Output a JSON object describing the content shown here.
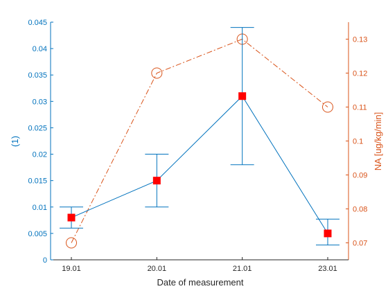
{
  "chart_data": {
    "type": "line",
    "categories": [
      "19.01",
      "20.01",
      "21.01",
      "23.01"
    ],
    "xlabel": "Date of measurement",
    "ylabel_left": "(1)",
    "ylabel_right": "NA [ug/kg/min]",
    "ylim_left": [
      0,
      0.045
    ],
    "ylim_right": [
      0.065,
      0.135
    ],
    "yticks_left": [
      "0",
      "0.005",
      "0.01",
      "0.015",
      "0.02",
      "0.025",
      "0.03",
      "0.035",
      "0.04",
      "0.045"
    ],
    "yticks_right": [
      "0.07",
      "0.08",
      "0.09",
      "0.1",
      "0.11",
      "0.12",
      "0.13"
    ],
    "grid": false,
    "series": [
      {
        "axis": "left",
        "style": "solid line, red square markers, error bars",
        "color": "#0072BD",
        "marker_color": "#FF0000",
        "values": [
          0.008,
          0.015,
          0.031,
          0.005
        ],
        "err_low": [
          0.006,
          0.01,
          0.018,
          0.0028
        ],
        "err_high": [
          0.01,
          0.02,
          0.044,
          0.0077
        ]
      },
      {
        "axis": "right",
        "style": "dash-dot line, open circle markers",
        "color": "#D95319",
        "values": [
          0.07,
          0.12,
          0.13,
          0.11
        ]
      }
    ]
  }
}
